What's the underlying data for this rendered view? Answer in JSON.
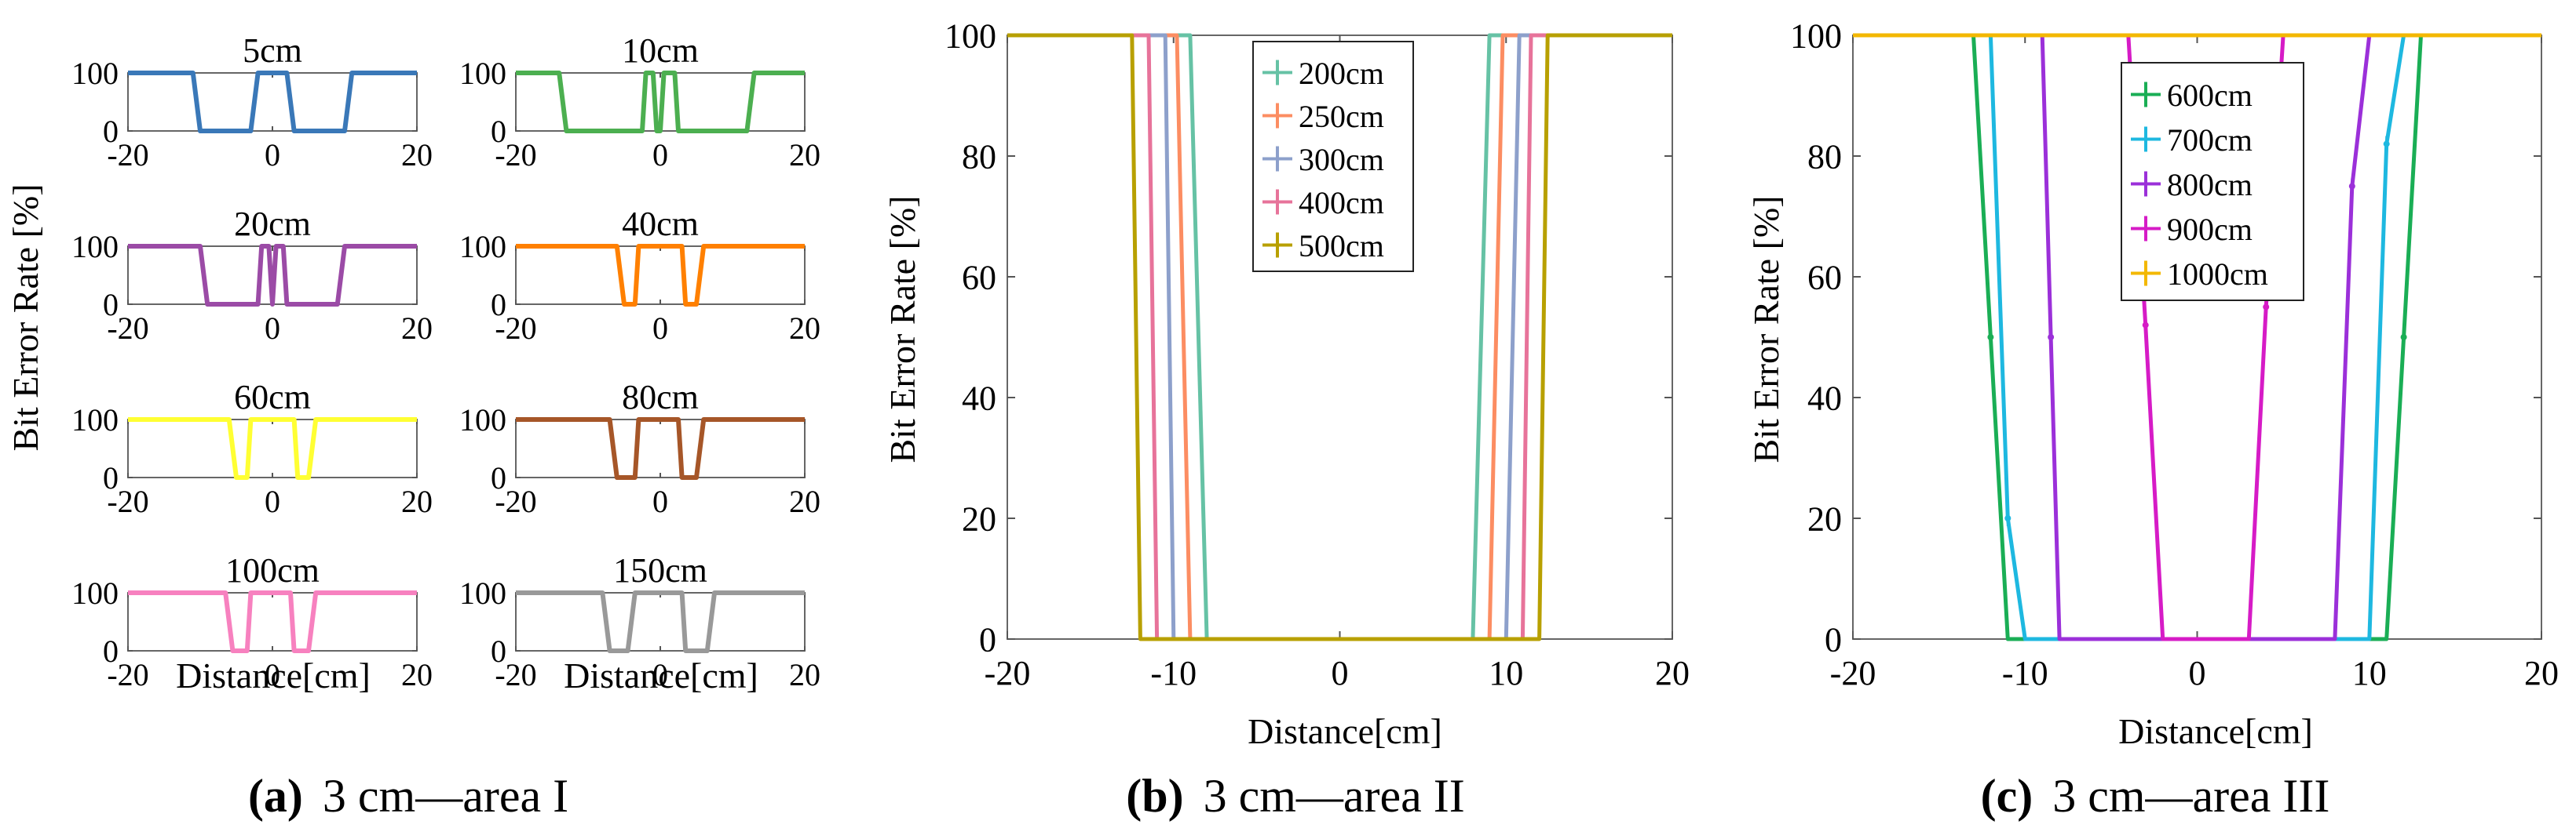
{
  "figure": {
    "ylabel": "Bit Error Rate [%]",
    "xlabel": "Distance[cm]",
    "captions": [
      {
        "letter": "(a)",
        "text": "3 cm—area I"
      },
      {
        "letter": "(b)",
        "text": "3 cm—area II"
      },
      {
        "letter": "(c)",
        "text": "3 cm—area III"
      }
    ]
  },
  "chart_data": [
    {
      "panel": "a",
      "type": "line",
      "layout": "small-multiples",
      "xlim": [
        -20,
        20
      ],
      "ylim": [
        0,
        100
      ],
      "xticks": [
        -20,
        0,
        20
      ],
      "yticks": [
        0,
        100
      ],
      "xlabel": "Distance[cm]",
      "ylabel": "Bit Error Rate [%]",
      "subplots": [
        {
          "title": "5cm",
          "color": "#3A78B8",
          "x": [
            -20,
            -11,
            -10,
            -3,
            -2,
            2,
            3,
            10,
            11,
            20
          ],
          "y": [
            100,
            100,
            0,
            0,
            100,
            100,
            0,
            0,
            100,
            100
          ]
        },
        {
          "title": "10cm",
          "color": "#4CAF50",
          "x": [
            -20,
            -14,
            -13,
            -2.5,
            -2,
            -1,
            -0.5,
            0,
            0.5,
            1,
            2,
            2.5,
            12,
            13,
            20
          ],
          "y": [
            100,
            100,
            0,
            0,
            100,
            100,
            0,
            0,
            100,
            100,
            100,
            0,
            0,
            100,
            100
          ]
        },
        {
          "title": "20cm",
          "color": "#9B4BA6",
          "x": [
            -20,
            -10,
            -9,
            -2,
            -1.5,
            -0.5,
            0,
            0.5,
            1.5,
            2,
            9,
            10,
            20
          ],
          "y": [
            100,
            100,
            0,
            0,
            100,
            100,
            0,
            100,
            100,
            0,
            0,
            100,
            100
          ]
        },
        {
          "title": "40cm",
          "color": "#FF8000",
          "x": [
            -20,
            -6,
            -5,
            -3.5,
            -3,
            3,
            3.5,
            5,
            6,
            20
          ],
          "y": [
            100,
            100,
            0,
            0,
            100,
            100,
            0,
            0,
            100,
            100
          ]
        },
        {
          "title": "60cm",
          "color": "#FFFF33",
          "x": [
            -20,
            -6,
            -5,
            -3.5,
            -3,
            3,
            3.5,
            5,
            6,
            20
          ],
          "y": [
            100,
            100,
            0,
            0,
            100,
            100,
            0,
            0,
            100,
            100
          ]
        },
        {
          "title": "80cm",
          "color": "#A65628",
          "x": [
            -20,
            -7,
            -6,
            -3.5,
            -3,
            2.5,
            3,
            5,
            6,
            20
          ],
          "y": [
            100,
            100,
            0,
            0,
            100,
            100,
            0,
            0,
            100,
            100
          ]
        },
        {
          "title": "100cm",
          "color": "#F781BF",
          "x": [
            -20,
            -6.5,
            -5.5,
            -3.5,
            -3,
            2.5,
            3,
            5,
            6,
            20
          ],
          "y": [
            100,
            100,
            0,
            0,
            100,
            100,
            0,
            0,
            100,
            100
          ]
        },
        {
          "title": "150cm",
          "color": "#999999",
          "x": [
            -20,
            -8,
            -7,
            -4.5,
            -3.5,
            3,
            3.5,
            6.5,
            7.5,
            20
          ],
          "y": [
            100,
            100,
            0,
            0,
            100,
            100,
            0,
            0,
            100,
            100
          ]
        }
      ]
    },
    {
      "panel": "b",
      "type": "line",
      "xlim": [
        -20,
        20
      ],
      "ylim": [
        0,
        100
      ],
      "xticks": [
        -20,
        -10,
        0,
        10,
        20
      ],
      "yticks": [
        0,
        20,
        40,
        60,
        80,
        100
      ],
      "xlabel": "Distance[cm]",
      "ylabel": "Bit Error Rate [%]",
      "legend_position": "top-center",
      "series": [
        {
          "name": "200cm",
          "color": "#66C2A5",
          "x": [
            -20,
            -9,
            -8,
            8,
            9,
            20
          ],
          "y": [
            100,
            100,
            0,
            0,
            100,
            100
          ]
        },
        {
          "name": "250cm",
          "color": "#FC8D62",
          "x": [
            -20,
            -9.8,
            -9,
            9,
            9.8,
            20
          ],
          "y": [
            100,
            100,
            0,
            0,
            100,
            100
          ]
        },
        {
          "name": "300cm",
          "color": "#8DA0CB",
          "x": [
            -20,
            -10.5,
            -10,
            10,
            10.8,
            20
          ],
          "y": [
            100,
            100,
            0,
            0,
            100,
            100
          ]
        },
        {
          "name": "400cm",
          "color": "#E7739A",
          "x": [
            -20,
            -11.5,
            -11,
            11,
            11.5,
            20
          ],
          "y": [
            100,
            100,
            0,
            0,
            100,
            100
          ]
        },
        {
          "name": "500cm",
          "color": "#B8A000",
          "x": [
            -20,
            -12.5,
            -12,
            12,
            12.5,
            20
          ],
          "y": [
            100,
            100,
            0,
            0,
            100,
            100
          ]
        }
      ]
    },
    {
      "panel": "c",
      "type": "line",
      "xlim": [
        -20,
        20
      ],
      "ylim": [
        0,
        100
      ],
      "xticks": [
        -20,
        -10,
        0,
        10,
        20
      ],
      "yticks": [
        0,
        20,
        40,
        60,
        80,
        100
      ],
      "xlabel": "Distance[cm]",
      "ylabel": "Bit Error Rate [%]",
      "legend_position": "top-center",
      "series": [
        {
          "name": "600cm",
          "color": "#1AAE55",
          "x": [
            -20,
            -13,
            -12,
            -11,
            11,
            12,
            13,
            20
          ],
          "y": [
            100,
            100,
            50,
            0,
            0,
            50,
            100,
            100
          ]
        },
        {
          "name": "700cm",
          "color": "#1EB8E0",
          "x": [
            -20,
            -12,
            -11,
            -10,
            10,
            11,
            12,
            20
          ],
          "y": [
            100,
            100,
            20,
            0,
            0,
            82,
            100,
            100
          ]
        },
        {
          "name": "800cm",
          "color": "#9B30D9",
          "x": [
            -20,
            -9,
            -8.5,
            -8,
            8,
            9,
            10,
            20
          ],
          "y": [
            100,
            100,
            50,
            0,
            0,
            75,
            100,
            100
          ]
        },
        {
          "name": "900cm",
          "color": "#D61BC6",
          "x": [
            -20,
            -4,
            -3,
            -2,
            3,
            4,
            5,
            20
          ],
          "y": [
            100,
            100,
            52,
            0,
            0,
            55,
            100,
            100
          ]
        },
        {
          "name": "1000cm",
          "color": "#F3B800",
          "x": [
            -20,
            20
          ],
          "y": [
            100,
            100
          ]
        }
      ]
    }
  ]
}
